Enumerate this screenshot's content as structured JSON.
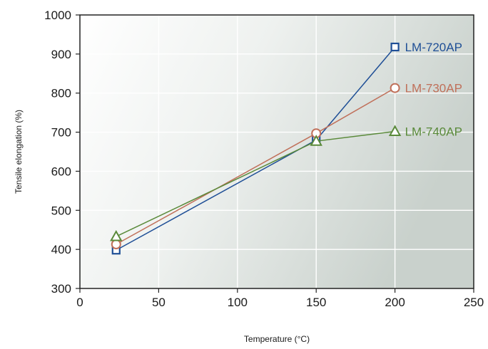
{
  "chart_data": {
    "type": "line",
    "xlabel": "Temperature (°C)",
    "ylabel": "Tensile elongation (%)",
    "xlim": [
      0,
      250
    ],
    "ylim": [
      300,
      1000
    ],
    "xticks": [
      0,
      50,
      100,
      150,
      200,
      250
    ],
    "yticks": [
      300,
      400,
      500,
      600,
      700,
      800,
      900,
      1000
    ],
    "grid": true,
    "series": [
      {
        "name": "LM-720AP",
        "marker": "square",
        "color": "#1f4f96",
        "x": [
          23,
          150,
          200
        ],
        "y": [
          398,
          680,
          918
        ]
      },
      {
        "name": "LM-730AP",
        "marker": "circle",
        "color": "#c0705a",
        "x": [
          23,
          150,
          200
        ],
        "y": [
          413,
          697,
          813
        ]
      },
      {
        "name": "LM-740AP",
        "marker": "triangle",
        "color": "#5a8a3a",
        "x": [
          23,
          150,
          200
        ],
        "y": [
          433,
          677,
          702
        ]
      }
    ]
  }
}
